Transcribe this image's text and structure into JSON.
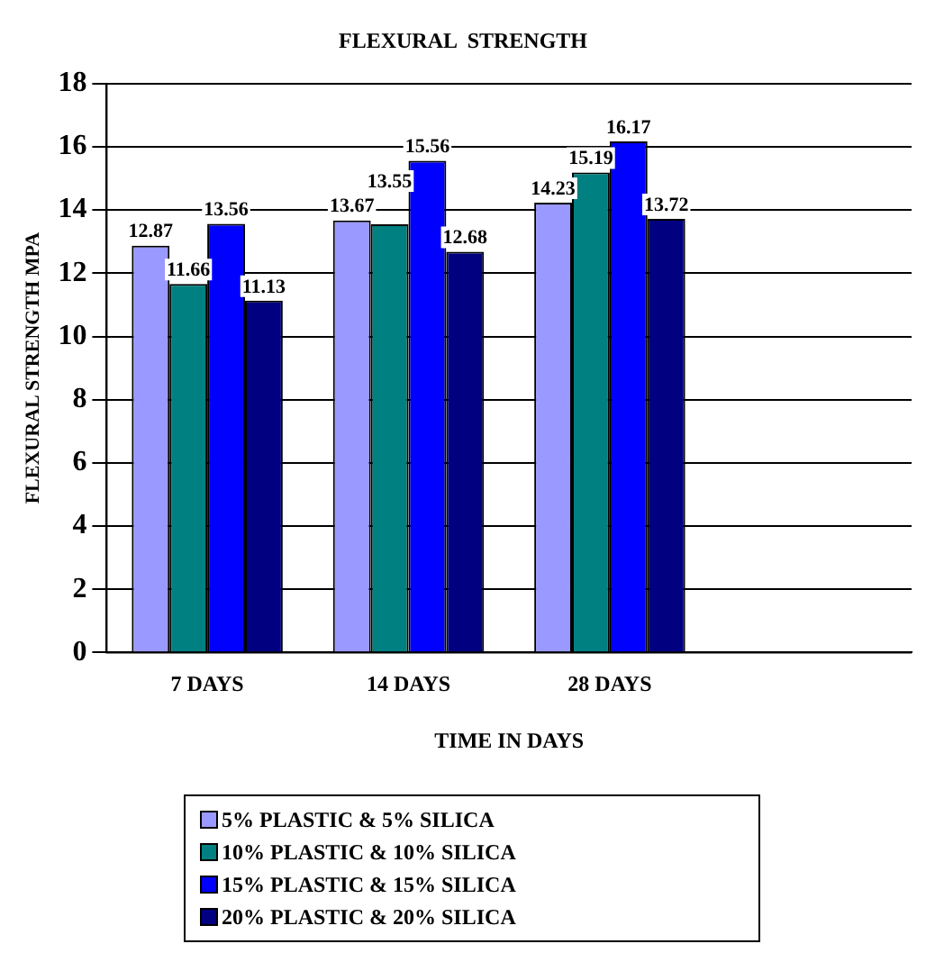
{
  "chart_data": {
    "type": "bar",
    "title": "FLEXURAL  STRENGTH",
    "xlabel": "TIME IN DAYS",
    "ylabel": "FLEXURAL STRENGTH MPA",
    "categories": [
      "7 DAYS",
      "14 DAYS",
      "28 DAYS",
      null
    ],
    "series": [
      {
        "name": "5% PLASTIC & 5% SILICA",
        "color": "#9999ff",
        "values": [
          12.87,
          13.67,
          14.23,
          null
        ]
      },
      {
        "name": "10% PLASTIC & 10% SILICA",
        "color": "#008080",
        "values": [
          11.66,
          13.55,
          15.19,
          null
        ]
      },
      {
        "name": "15% PLASTIC & 15% SILICA",
        "color": "#0000ff",
        "values": [
          13.56,
          15.56,
          16.17,
          null
        ]
      },
      {
        "name": "20% PLASTIC & 20% SILICA",
        "color": "#000080",
        "values": [
          11.13,
          12.68,
          13.72,
          null
        ]
      }
    ],
    "ylim": [
      0,
      18
    ],
    "yticks": [
      0,
      2,
      4,
      6,
      8,
      10,
      12,
      14,
      16,
      18
    ],
    "grid": "y",
    "legend": "bottom",
    "data_labels": true
  }
}
